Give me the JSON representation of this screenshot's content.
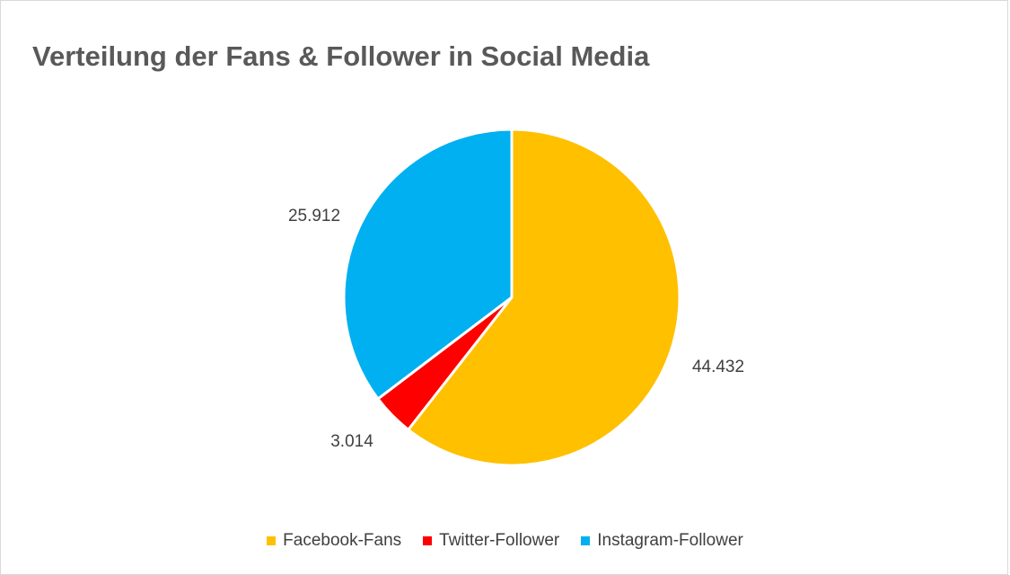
{
  "chart_data": {
    "type": "pie",
    "title": "Verteilung der Fans & Follower in Social Media",
    "categories": [
      "Facebook-Fans",
      "Twitter-Follower",
      "Instagram-Follower"
    ],
    "values": [
      44432,
      3014,
      25912
    ],
    "value_labels": [
      "44.432",
      "3.014",
      "25.912"
    ],
    "colors": [
      "#ffc000",
      "#ff0000",
      "#00b0f0"
    ],
    "start_angle": "12 o'clock",
    "direction": "clockwise",
    "legend_position": "bottom"
  }
}
